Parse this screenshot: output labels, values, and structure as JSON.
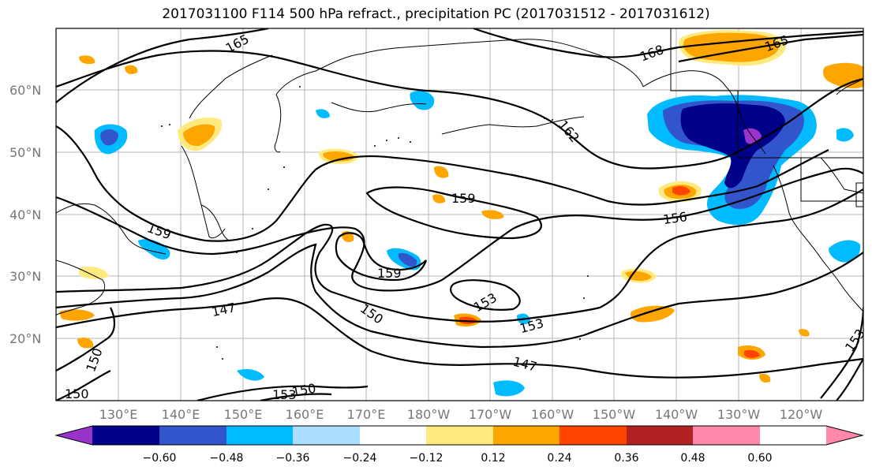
{
  "title": "2017031100 F114 500 hPa refract., precipitation PC (2017031512 - 2017031612)",
  "lat_labels": [
    "60°N",
    "50°N",
    "40°N",
    "30°N",
    "20°N"
  ],
  "lon_labels": [
    "130°E",
    "140°E",
    "150°E",
    "160°E",
    "170°E",
    "180°W",
    "170°W",
    "160°W",
    "150°W",
    "140°W",
    "130°W",
    "120°W"
  ],
  "contour_labels": [
    "165",
    "168",
    "165",
    "162",
    "159",
    "156",
    "159",
    "159",
    "153",
    "153",
    "150",
    "147",
    "147",
    "150",
    "153",
    "150",
    "153",
    "150"
  ],
  "colorbar": {
    "ticks": [
      "−0.60",
      "−0.48",
      "−0.36",
      "−0.24",
      "−0.12",
      "0.12",
      "0.24",
      "0.36",
      "0.48",
      "0.60"
    ],
    "colors": [
      "#9933cc",
      "#000088",
      "#3355cc",
      "#00bbff",
      "#aaddff",
      "#ffffff",
      "#ffea80",
      "#ffa500",
      "#ff4400",
      "#b22222",
      "#ff88aa"
    ]
  },
  "precip_colors": {
    "neg_dark": "#000088",
    "neg_mid": "#3355cc",
    "neg_light": "#00bbff",
    "neg_pale": "#aaddff",
    "pos_pale": "#ffea80",
    "pos_mid": "#ffa500",
    "pos_strong": "#ff4400",
    "neg_extreme": "#9933cc"
  }
}
